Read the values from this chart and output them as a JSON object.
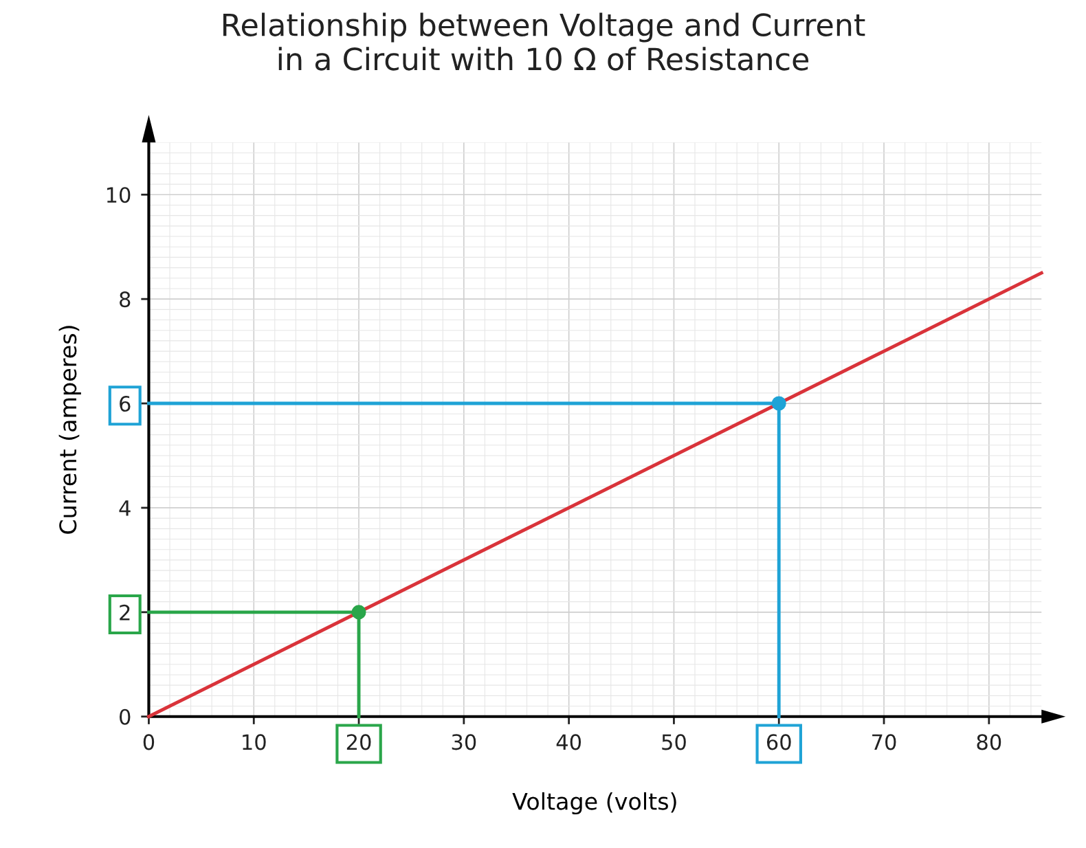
{
  "chart_data": {
    "type": "line",
    "title": "Relationship between Voltage and Current\nin a Circuit with 10 Ω of Resistance",
    "xlabel": "Voltage (volts)",
    "ylabel": "Current (amperes)",
    "xlim": [
      0,
      85
    ],
    "ylim": [
      0,
      11
    ],
    "xticks": [
      0,
      10,
      20,
      30,
      40,
      50,
      60,
      70,
      80
    ],
    "yticks": [
      0,
      2,
      4,
      6,
      8,
      10
    ],
    "grid": true,
    "legend": false,
    "series": [
      {
        "color": "#d9333a",
        "x": [
          0,
          85
        ],
        "values": [
          0,
          8.5
        ]
      },
      {
        "color": "#2aa64a",
        "x": [
          0,
          20,
          20
        ],
        "values": [
          2,
          2,
          0
        ]
      },
      {
        "color": "#1fa3d6",
        "x": [
          0,
          60,
          60
        ],
        "values": [
          6,
          6,
          0
        ]
      },
      {
        "type": "scatter",
        "color": "#2aa64a",
        "x": [
          20
        ],
        "values": [
          2
        ],
        "marker": "circle"
      },
      {
        "type": "scatter",
        "color": "#1fa3d6",
        "x": [
          60
        ],
        "values": [
          6
        ],
        "marker": "circle"
      }
    ]
  }
}
